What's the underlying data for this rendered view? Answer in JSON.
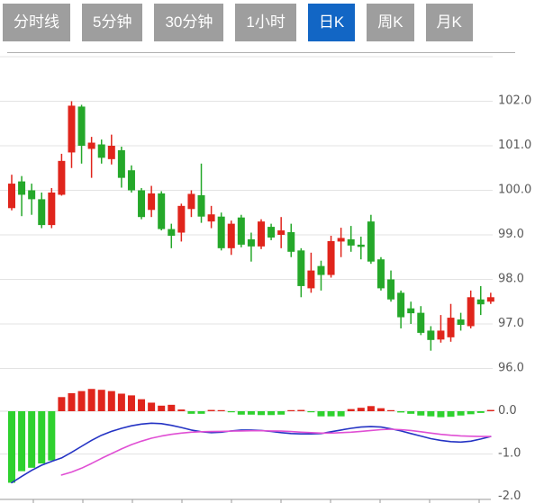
{
  "tabs": {
    "items": [
      {
        "label": "分时线",
        "active": false
      },
      {
        "label": "5分钟",
        "active": false
      },
      {
        "label": "30分钟",
        "active": false
      },
      {
        "label": "1小时",
        "active": false
      },
      {
        "label": "日K",
        "active": true
      },
      {
        "label": "周K",
        "active": false
      },
      {
        "label": "月K",
        "active": false
      }
    ]
  },
  "colors": {
    "tab_inactive_bg": "#9e9e9e",
    "tab_active_bg": "#1266c5",
    "tab_text": "#ffffff",
    "up_red": "#e0251c",
    "down_green": "#25a82a",
    "hist_green": "#2ed12e",
    "dif_line_blue": "#2433c4",
    "dea_line_magenta": "#e04fd4",
    "grid": "#e3e3e3",
    "axis_text": "#595959",
    "axis_line": "#9a9a9a"
  },
  "price_axis": {
    "labels": [
      "102.0",
      "101.0",
      "100.0",
      "99.0",
      "98.0",
      "97.0",
      "96.0"
    ],
    "values": [
      102,
      101,
      100,
      99,
      98,
      97,
      96
    ],
    "unlabeled_gridlines": [
      103
    ]
  },
  "macd_axis": {
    "labels": [
      "0.0",
      "-1.0",
      "-2.0"
    ],
    "values": [
      0,
      -1,
      -2
    ]
  },
  "chart_data": {
    "type": "candlestick",
    "title": "",
    "legend_position": "none",
    "grid": true,
    "y_axis_side": "right",
    "price_range": [
      96.0,
      103.0
    ],
    "candles": {
      "open": [
        99.6,
        100.2,
        100.0,
        99.8,
        99.22,
        99.9,
        100.85,
        101.88,
        100.93,
        101.03,
        100.7,
        100.9,
        100.45,
        100.0,
        99.56,
        99.93,
        99.13,
        99.05,
        99.58,
        99.89,
        99.3,
        99.41,
        98.7,
        99.39,
        98.9,
        98.74,
        99.18,
        99.0,
        99.06,
        98.65,
        97.8,
        98.3,
        98.1,
        98.85,
        98.9,
        98.78,
        99.3,
        98.45,
        98.0,
        97.7,
        97.35,
        97.25,
        96.85,
        96.65,
        96.7,
        97.1,
        96.95,
        97.55,
        97.5
      ],
      "close": [
        100.15,
        99.9,
        99.8,
        99.22,
        99.95,
        100.66,
        101.9,
        101.0,
        101.07,
        100.73,
        101.0,
        100.28,
        100.0,
        99.4,
        99.93,
        99.13,
        98.98,
        99.65,
        99.92,
        99.41,
        99.46,
        98.7,
        99.25,
        98.78,
        98.74,
        99.3,
        98.94,
        99.1,
        98.62,
        97.85,
        98.2,
        98.1,
        98.86,
        98.93,
        98.76,
        98.73,
        98.4,
        97.8,
        97.55,
        97.15,
        97.24,
        96.8,
        96.64,
        96.85,
        97.14,
        96.98,
        97.6,
        97.44,
        97.6
      ],
      "high": [
        100.35,
        100.32,
        100.15,
        99.95,
        100.05,
        100.82,
        102.0,
        101.92,
        101.2,
        101.14,
        101.25,
        100.98,
        100.56,
        100.05,
        100.1,
        99.98,
        99.25,
        99.7,
        100.0,
        100.6,
        99.65,
        99.5,
        99.32,
        99.45,
        99.05,
        99.35,
        99.25,
        99.4,
        99.25,
        98.7,
        98.6,
        98.42,
        98.98,
        99.16,
        99.2,
        98.96,
        99.45,
        98.5,
        98.2,
        97.75,
        97.5,
        97.4,
        96.95,
        97.2,
        97.45,
        97.25,
        97.75,
        97.85,
        97.7
      ],
      "low": [
        99.55,
        99.42,
        99.45,
        99.15,
        99.15,
        99.88,
        100.5,
        100.6,
        100.28,
        100.6,
        100.58,
        100.06,
        99.95,
        99.35,
        99.4,
        99.1,
        98.7,
        98.85,
        99.4,
        99.27,
        99.15,
        98.65,
        98.55,
        98.72,
        98.4,
        98.68,
        98.88,
        98.7,
        98.5,
        97.6,
        97.7,
        97.75,
        98.04,
        98.5,
        98.62,
        98.45,
        98.35,
        97.75,
        97.5,
        96.9,
        97.0,
        96.75,
        96.4,
        96.58,
        96.6,
        96.85,
        96.9,
        97.2,
        97.45
      ]
    },
    "macd": {
      "range": [
        -2.0,
        0.6
      ],
      "histogram": [
        -1.67,
        -1.4,
        -1.32,
        -1.22,
        -1.15,
        0.33,
        0.42,
        0.47,
        0.52,
        0.5,
        0.47,
        0.41,
        0.37,
        0.28,
        0.2,
        0.13,
        0.15,
        0.04,
        -0.06,
        -0.06,
        0.03,
        0.01,
        -0.02,
        -0.08,
        -0.08,
        -0.09,
        -0.09,
        -0.08,
        0.01,
        0.03,
        -0.01,
        -0.12,
        -0.12,
        -0.12,
        0.05,
        0.08,
        0.12,
        0.07,
        0.02,
        -0.03,
        -0.06,
        -0.1,
        -0.12,
        -0.14,
        -0.13,
        -0.1,
        -0.07,
        -0.04,
        0.03
      ],
      "dif": [
        -1.67,
        -1.52,
        -1.38,
        -1.26,
        -1.17,
        -1.09,
        -0.96,
        -0.82,
        -0.68,
        -0.56,
        -0.47,
        -0.4,
        -0.34,
        -0.3,
        -0.28,
        -0.29,
        -0.33,
        -0.38,
        -0.44,
        -0.48,
        -0.5,
        -0.49,
        -0.46,
        -0.44,
        -0.44,
        -0.45,
        -0.47,
        -0.5,
        -0.52,
        -0.53,
        -0.53,
        -0.52,
        -0.48,
        -0.44,
        -0.4,
        -0.37,
        -0.36,
        -0.37,
        -0.41,
        -0.46,
        -0.52,
        -0.58,
        -0.64,
        -0.68,
        -0.71,
        -0.72,
        -0.7,
        -0.65,
        -0.59
      ],
      "dea": [
        null,
        null,
        null,
        null,
        null,
        -1.49,
        -1.42,
        -1.33,
        -1.22,
        -1.1,
        -0.99,
        -0.88,
        -0.78,
        -0.7,
        -0.63,
        -0.58,
        -0.54,
        -0.51,
        -0.49,
        -0.48,
        -0.475,
        -0.47,
        -0.465,
        -0.46,
        -0.455,
        -0.455,
        -0.46,
        -0.465,
        -0.475,
        -0.49,
        -0.5,
        -0.51,
        -0.51,
        -0.5,
        -0.49,
        -0.47,
        -0.45,
        -0.43,
        -0.42,
        -0.43,
        -0.45,
        -0.48,
        -0.51,
        -0.54,
        -0.56,
        -0.575,
        -0.585,
        -0.59,
        -0.59
      ]
    }
  }
}
